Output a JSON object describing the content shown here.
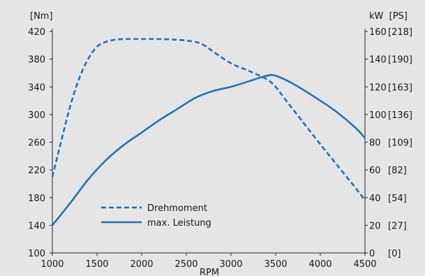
{
  "chart_data": {
    "type": "line",
    "xlabel": "RPM",
    "ylabel_left": "[Nm]",
    "ylabel_right": "kW  [PS]",
    "xlim": [
      1000,
      4500
    ],
    "ylim_left": [
      100,
      420
    ],
    "ylim_right": [
      0,
      160
    ],
    "x_ticks": [
      1000,
      1500,
      2000,
      2500,
      3000,
      3500,
      4000,
      4500
    ],
    "y_left_ticks": [
      100,
      140,
      180,
      220,
      260,
      300,
      340,
      380,
      420
    ],
    "y_right_ticks": [
      {
        "kw": 0,
        "label": "0",
        "ps": "[0]"
      },
      {
        "kw": 20,
        "label": "20",
        "ps": "[27]"
      },
      {
        "kw": 40,
        "label": "40",
        "ps": "[54]"
      },
      {
        "kw": 60,
        "label": "60",
        "ps": "[82]"
      },
      {
        "kw": 80,
        "label": "80",
        "ps": "[109]"
      },
      {
        "kw": 100,
        "label": "100",
        "ps": "[136]"
      },
      {
        "kw": 120,
        "label": "120",
        "ps": "[163]"
      },
      {
        "kw": 140,
        "label": "140",
        "ps": "[190]"
      },
      {
        "kw": 160,
        "label": "160",
        "ps": "[218]"
      }
    ],
    "legend_position": "lower-left",
    "color": "#1e73be",
    "series": [
      {
        "name": "Drehmoment",
        "axis": "left",
        "style": "dashed",
        "points": [
          [
            1000,
            210
          ],
          [
            1100,
            262
          ],
          [
            1200,
            312
          ],
          [
            1300,
            352
          ],
          [
            1400,
            380
          ],
          [
            1500,
            398
          ],
          [
            1600,
            405
          ],
          [
            1700,
            408
          ],
          [
            1800,
            409
          ],
          [
            2000,
            409
          ],
          [
            2200,
            409
          ],
          [
            2400,
            408
          ],
          [
            2600,
            405
          ],
          [
            2700,
            400
          ],
          [
            2800,
            391
          ],
          [
            3000,
            374
          ],
          [
            3200,
            363
          ],
          [
            3400,
            351
          ],
          [
            3500,
            340
          ],
          [
            3600,
            323
          ],
          [
            3800,
            290
          ],
          [
            4000,
            257
          ],
          [
            4200,
            225
          ],
          [
            4400,
            193
          ],
          [
            4500,
            176
          ]
        ]
      },
      {
        "name": "max. Leistung",
        "axis": "right",
        "style": "solid",
        "points": [
          [
            1000,
            20
          ],
          [
            1200,
            36
          ],
          [
            1400,
            53
          ],
          [
            1600,
            67
          ],
          [
            1800,
            78
          ],
          [
            2000,
            87
          ],
          [
            2200,
            96
          ],
          [
            2400,
            104
          ],
          [
            2600,
            112
          ],
          [
            2800,
            117
          ],
          [
            3000,
            120
          ],
          [
            3200,
            124
          ],
          [
            3400,
            128
          ],
          [
            3500,
            128
          ],
          [
            3700,
            122
          ],
          [
            4000,
            110
          ],
          [
            4200,
            101
          ],
          [
            4400,
            90
          ],
          [
            4500,
            83
          ]
        ]
      }
    ]
  }
}
